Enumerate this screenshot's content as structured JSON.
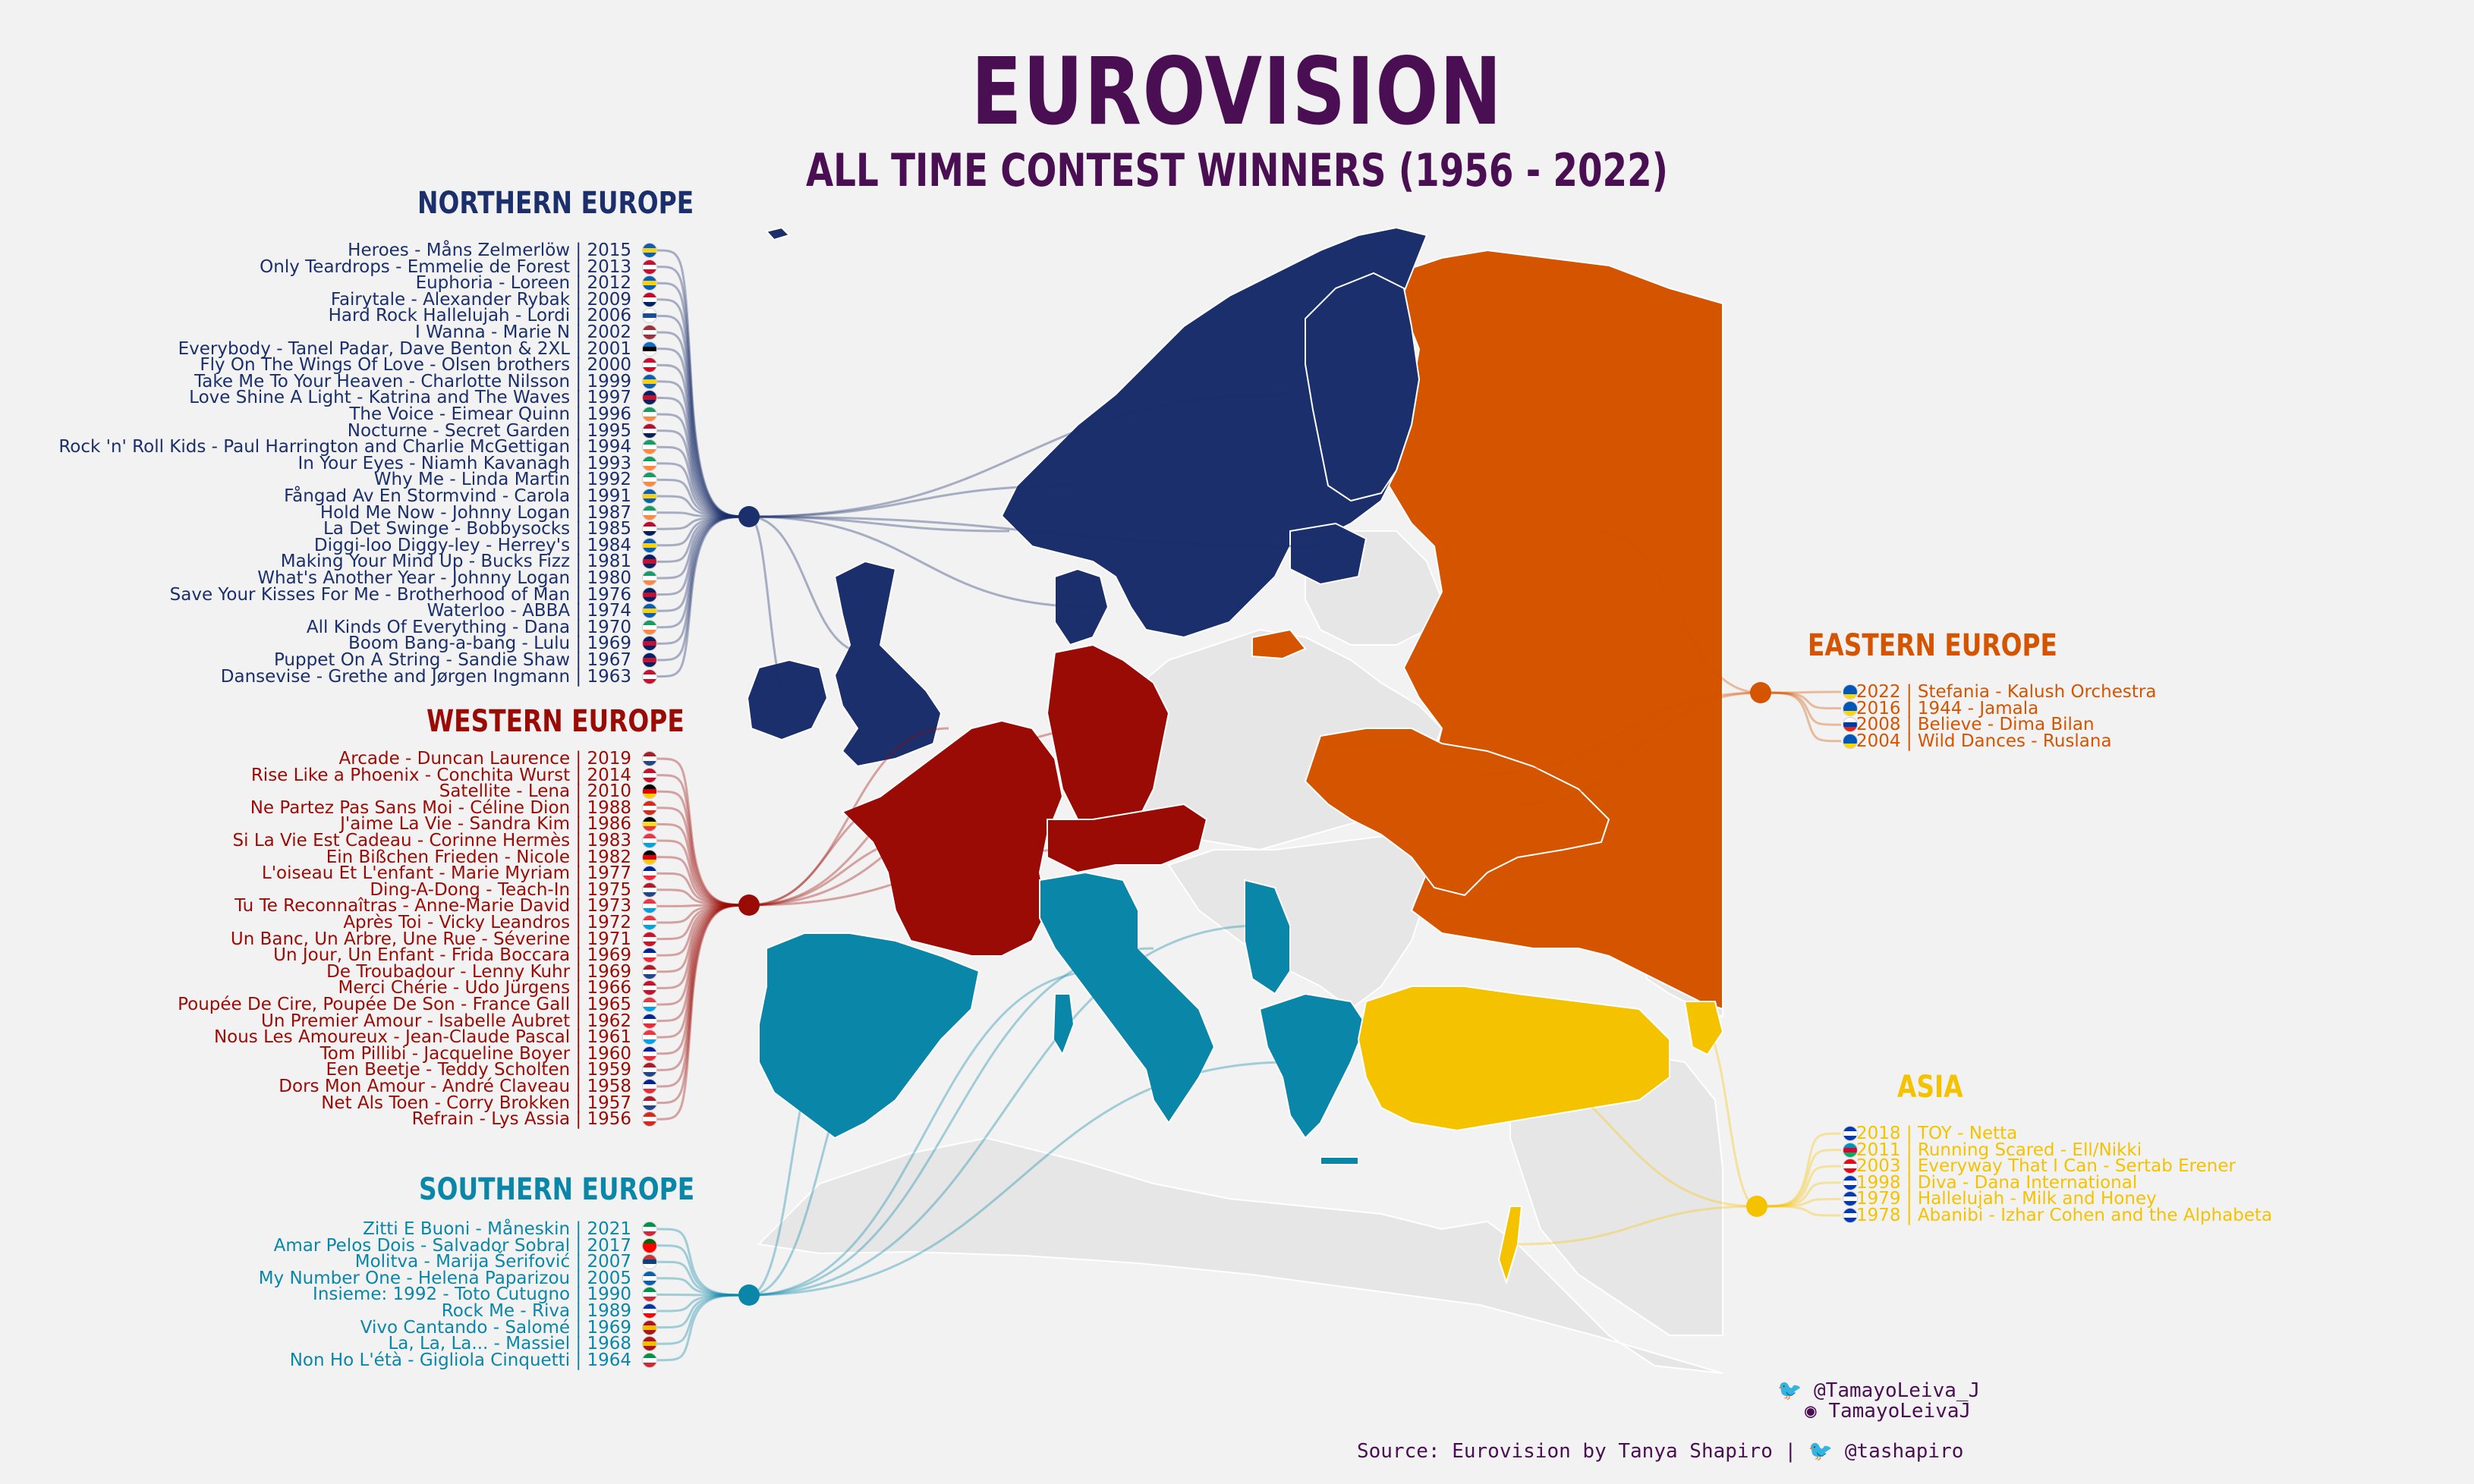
{
  "title": "EUROVISION",
  "subtitle": "ALL TIME CONTEST WINNERS (1956 - 2022)",
  "colors": {
    "northern": "#1a2f6b",
    "western": "#9b0b05",
    "southern": "#0a86a8",
    "eastern": "#d45400",
    "asia": "#f5c200",
    "other": "#e6e6e6",
    "title": "#4a0f52"
  },
  "regions": {
    "northern": {
      "label": "NORTHERN EUROPE",
      "songs": [
        {
          "text": "Heroes - Måns Zelmerlöw | 2015",
          "flag": [
            "#0a5fb4",
            "#f7d117",
            "#0a5fb4"
          ]
        },
        {
          "text": "Only Teardrops - Emmelie de Forest | 2013",
          "flag": [
            "#c8102e",
            "#ffffff",
            "#c8102e"
          ]
        },
        {
          "text": "Euphoria - Loreen | 2012",
          "flag": [
            "#0a5fb4",
            "#f7d117",
            "#0a5fb4"
          ]
        },
        {
          "text": "Fairytale - Alexander Rybak | 2009",
          "flag": [
            "#ba0c2f",
            "#ffffff",
            "#00205b"
          ]
        },
        {
          "text": "Hard Rock Hallelujah - Lordi | 2006",
          "flag": [
            "#ffffff",
            "#1a4c9c",
            "#ffffff"
          ]
        },
        {
          "text": "I Wanna - Marie N | 2002",
          "flag": [
            "#9e3039",
            "#ffffff",
            "#9e3039"
          ]
        },
        {
          "text": "Everybody - Tanel Padar, Dave Benton & 2XL | 2001",
          "flag": [
            "#0072ce",
            "#000000",
            "#ffffff"
          ]
        },
        {
          "text": "Fly On The Wings Of Love - Olsen brothers | 2000",
          "flag": [
            "#c8102e",
            "#ffffff",
            "#c8102e"
          ]
        },
        {
          "text": "Take Me To Your Heaven - Charlotte Nilsson | 1999",
          "flag": [
            "#0a5fb4",
            "#f7d117",
            "#0a5fb4"
          ]
        },
        {
          "text": "Love Shine A Light - Katrina and The Waves | 1997",
          "flag": [
            "#012169",
            "#c8102e",
            "#012169"
          ]
        },
        {
          "text": "The Voice - Eimear Quinn | 1996",
          "flag": [
            "#169b62",
            "#ffffff",
            "#ff883e"
          ]
        },
        {
          "text": "Nocturne - Secret Garden | 1995",
          "flag": [
            "#ba0c2f",
            "#ffffff",
            "#00205b"
          ]
        },
        {
          "text": "Rock 'n' Roll Kids - Paul Harrington and Charlie McGettigan | 1994",
          "flag": [
            "#169b62",
            "#ffffff",
            "#ff883e"
          ]
        },
        {
          "text": "In Your Eyes - Niamh Kavanagh | 1993",
          "flag": [
            "#169b62",
            "#ffffff",
            "#ff883e"
          ]
        },
        {
          "text": "Why Me - Linda Martin | 1992",
          "flag": [
            "#169b62",
            "#ffffff",
            "#ff883e"
          ]
        },
        {
          "text": "Fångad Av En Stormvind - Carola | 1991",
          "flag": [
            "#0a5fb4",
            "#f7d117",
            "#0a5fb4"
          ]
        },
        {
          "text": "Hold Me Now - Johnny Logan | 1987",
          "flag": [
            "#169b62",
            "#ffffff",
            "#ff883e"
          ]
        },
        {
          "text": "La Det Swinge - Bobbysocks | 1985",
          "flag": [
            "#ba0c2f",
            "#ffffff",
            "#00205b"
          ]
        },
        {
          "text": "Diggi-loo Diggy-ley - Herrey's | 1984",
          "flag": [
            "#0a5fb4",
            "#f7d117",
            "#0a5fb4"
          ]
        },
        {
          "text": "Making Your Mind Up - Bucks Fizz | 1981",
          "flag": [
            "#012169",
            "#c8102e",
            "#012169"
          ]
        },
        {
          "text": "What's Another Year - Johnny Logan | 1980",
          "flag": [
            "#169b62",
            "#ffffff",
            "#ff883e"
          ]
        },
        {
          "text": "Save Your Kisses For Me - Brotherhood of Man | 1976",
          "flag": [
            "#012169",
            "#c8102e",
            "#012169"
          ]
        },
        {
          "text": "Waterloo - ABBA | 1974",
          "flag": [
            "#0a5fb4",
            "#f7d117",
            "#0a5fb4"
          ]
        },
        {
          "text": "All Kinds Of Everything - Dana | 1970",
          "flag": [
            "#169b62",
            "#ffffff",
            "#ff883e"
          ]
        },
        {
          "text": "Boom Bang-a-bang - Lulu | 1969",
          "flag": [
            "#012169",
            "#c8102e",
            "#012169"
          ]
        },
        {
          "text": "Puppet On A String - Sandie Shaw | 1967",
          "flag": [
            "#012169",
            "#c8102e",
            "#012169"
          ]
        },
        {
          "text": "Dansevise - Grethe and Jørgen Ingmann | 1963",
          "flag": [
            "#c8102e",
            "#ffffff",
            "#c8102e"
          ]
        }
      ]
    },
    "western": {
      "label": "WESTERN EUROPE",
      "songs": [
        {
          "text": "Arcade - Duncan Laurence | 2019",
          "flag": [
            "#ae1c28",
            "#ffffff",
            "#21468b"
          ]
        },
        {
          "text": "Rise Like a Phoenix - Conchita Wurst | 2014",
          "flag": [
            "#c8102e",
            "#ffffff",
            "#c8102e"
          ]
        },
        {
          "text": "Satellite - Lena | 2010",
          "flag": [
            "#000000",
            "#dd0000",
            "#ffce00"
          ]
        },
        {
          "text": "Ne Partez Pas Sans Moi - Céline Dion | 1988",
          "flag": [
            "#d52b1e",
            "#ffffff",
            "#d52b1e"
          ]
        },
        {
          "text": "J'aime La Vie - Sandra Kim | 1986",
          "flag": [
            "#000000",
            "#fdda24",
            "#ef3340"
          ]
        },
        {
          "text": "Si La Vie Est Cadeau - Corinne Hermès | 1983",
          "flag": [
            "#ef3340",
            "#ffffff",
            "#00a2e1"
          ]
        },
        {
          "text": "Ein Bißchen Frieden - Nicole | 1982",
          "flag": [
            "#000000",
            "#dd0000",
            "#ffce00"
          ]
        },
        {
          "text": "L'oiseau Et L'enfant - Marie Myriam | 1977",
          "flag": [
            "#002395",
            "#ffffff",
            "#ed2939"
          ]
        },
        {
          "text": "Ding-A-Dong - Teach-In | 1975",
          "flag": [
            "#ae1c28",
            "#ffffff",
            "#21468b"
          ]
        },
        {
          "text": "Tu Te Reconnaîtras - Anne-Marie David | 1973",
          "flag": [
            "#ef3340",
            "#ffffff",
            "#00a2e1"
          ]
        },
        {
          "text": "Après Toi - Vicky Leandros | 1972",
          "flag": [
            "#ef3340",
            "#ffffff",
            "#00a2e1"
          ]
        },
        {
          "text": "Un Banc, Un Arbre, Une Rue - Séverine | 1971",
          "flag": [
            "#ce1126",
            "#ffffff",
            "#ce1126"
          ]
        },
        {
          "text": "Un Jour, Un Enfant - Frida Boccara | 1969",
          "flag": [
            "#002395",
            "#ffffff",
            "#ed2939"
          ]
        },
        {
          "text": "De Troubadour - Lenny Kuhr | 1969",
          "flag": [
            "#ae1c28",
            "#ffffff",
            "#21468b"
          ]
        },
        {
          "text": "Merci Chérie - Udo Jürgens | 1966",
          "flag": [
            "#c8102e",
            "#ffffff",
            "#c8102e"
          ]
        },
        {
          "text": "Poupée De Cire, Poupée De Son - France Gall | 1965",
          "flag": [
            "#ef3340",
            "#ffffff",
            "#00a2e1"
          ]
        },
        {
          "text": "Un Premier Amour - Isabelle Aubret | 1962",
          "flag": [
            "#002395",
            "#ffffff",
            "#ed2939"
          ]
        },
        {
          "text": "Nous Les Amoureux - Jean-Claude Pascal | 1961",
          "flag": [
            "#ef3340",
            "#ffffff",
            "#00a2e1"
          ]
        },
        {
          "text": "Tom Pillibi - Jacqueline Boyer | 1960",
          "flag": [
            "#002395",
            "#ffffff",
            "#ed2939"
          ]
        },
        {
          "text": "Een Beetje - Teddy Scholten | 1959",
          "flag": [
            "#ae1c28",
            "#ffffff",
            "#21468b"
          ]
        },
        {
          "text": "Dors Mon Amour - André Claveau | 1958",
          "flag": [
            "#002395",
            "#ffffff",
            "#ed2939"
          ]
        },
        {
          "text": "Net Als Toen - Corry Brokken | 1957",
          "flag": [
            "#ae1c28",
            "#ffffff",
            "#21468b"
          ]
        },
        {
          "text": "Refrain - Lys Assia | 1956",
          "flag": [
            "#d52b1e",
            "#ffffff",
            "#d52b1e"
          ]
        }
      ]
    },
    "southern": {
      "label": "SOUTHERN EUROPE",
      "songs": [
        {
          "text": "Zitti E Buoni - Måneskin | 2021",
          "flag": [
            "#009246",
            "#ffffff",
            "#ce2b37"
          ]
        },
        {
          "text": "Amar Pelos Dois - Salvador Sobral | 2017",
          "flag": [
            "#006600",
            "#ff0000",
            "#ff0000"
          ]
        },
        {
          "text": "Molitva - Marija Šerifović | 2007",
          "flag": [
            "#c6363c",
            "#0c4076",
            "#ffffff"
          ]
        },
        {
          "text": "My Number One - Helena Paparizou | 2005",
          "flag": [
            "#0d5eaf",
            "#ffffff",
            "#0d5eaf"
          ]
        },
        {
          "text": "Insieme: 1992 - Toto Cutugno | 1990",
          "flag": [
            "#009246",
            "#ffffff",
            "#ce2b37"
          ]
        },
        {
          "text": "Rock Me - Riva | 1989",
          "flag": [
            "#0035ad",
            "#ffffff",
            "#ff0000"
          ]
        },
        {
          "text": "Vivo Cantando - Salomé | 1969",
          "flag": [
            "#aa151b",
            "#f1bf00",
            "#aa151b"
          ]
        },
        {
          "text": "La, La, La... - Massiel | 1968",
          "flag": [
            "#aa151b",
            "#f1bf00",
            "#aa151b"
          ]
        },
        {
          "text": "Non Ho L'étà - Gigliola Cinquetti | 1964",
          "flag": [
            "#009246",
            "#ffffff",
            "#ce2b37"
          ]
        }
      ]
    },
    "eastern": {
      "label": "EASTERN EUROPE",
      "songs": [
        {
          "text": "2022 | Stefania - Kalush Orchestra",
          "flag": [
            "#0057b7",
            "#0057b7",
            "#ffd700"
          ]
        },
        {
          "text": "2016 | 1944 - Jamala",
          "flag": [
            "#0057b7",
            "#0057b7",
            "#ffd700"
          ]
        },
        {
          "text": "2008 | Believe - Dima Bilan",
          "flag": [
            "#ffffff",
            "#0039a6",
            "#d52b1e"
          ]
        },
        {
          "text": "2004 | Wild Dances - Ruslana",
          "flag": [
            "#0057b7",
            "#0057b7",
            "#ffd700"
          ]
        }
      ]
    },
    "asia": {
      "label": "ASIA",
      "songs": [
        {
          "text": "2018 | TOY - Netta",
          "flag": [
            "#0038b8",
            "#ffffff",
            "#0038b8"
          ]
        },
        {
          "text": "2011 | Running Scared - Ell/Nikki",
          "flag": [
            "#0092bc",
            "#e4002b",
            "#00af66"
          ]
        },
        {
          "text": "2003 | Everyway That I Can - Sertab Erener",
          "flag": [
            "#e30a17",
            "#ffffff",
            "#e30a17"
          ]
        },
        {
          "text": "1998 | Diva - Dana International",
          "flag": [
            "#0038b8",
            "#ffffff",
            "#0038b8"
          ]
        },
        {
          "text": "1979 | Hallelujah - Milk and Honey",
          "flag": [
            "#0038b8",
            "#ffffff",
            "#0038b8"
          ]
        },
        {
          "text": "1978 | Abanibi - Izhar Cohen and the Alphabeta",
          "flag": [
            "#0038b8",
            "#ffffff",
            "#0038b8"
          ]
        }
      ]
    }
  },
  "credits": {
    "twitter": "@TamayoLeiva_J",
    "github": "TamayoLeivaJ",
    "source": "Source: Eurovision by Tanya Shapiro | ",
    "source_handle": "@tashapiro",
    "twitter_icon": "twitter-bird-icon",
    "github_icon": "github-octocat-icon"
  }
}
